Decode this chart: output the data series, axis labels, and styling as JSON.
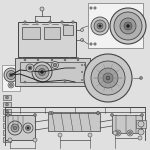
{
  "bg_color": "#e0e0e0",
  "line_color": "#444444",
  "dark_color": "#222222",
  "mid_color": "#888888",
  "light_color": "#c8c8c8",
  "box_fill": "#f2f2f2",
  "fig_width": 1.5,
  "fig_height": 1.5,
  "dpi": 100
}
